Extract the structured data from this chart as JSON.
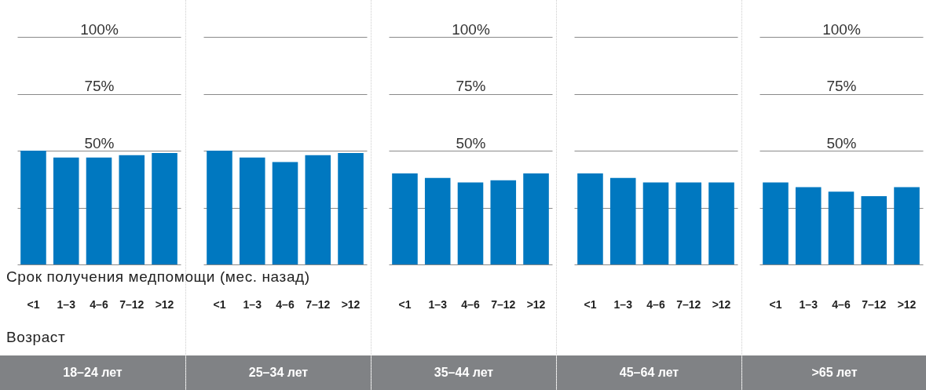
{
  "chart_data": [
    {
      "type": "bar",
      "title": "18–24 лет",
      "categories": [
        "<1",
        "1–3",
        "4–6",
        "7–12",
        ">12"
      ],
      "values": [
        50,
        47,
        47,
        48,
        49
      ],
      "color": "#0078c0",
      "ylim": [
        0,
        100
      ],
      "yticks": [
        {
          "value": 0,
          "label": null
        },
        {
          "value": 25,
          "label": null
        },
        {
          "value": 50,
          "label": "50%"
        },
        {
          "value": 75,
          "label": "75%"
        },
        {
          "value": 100,
          "label": "100%"
        }
      ],
      "grid": "y",
      "annotations": [
        "Срок получения медпомощи (мес. назад)",
        "Возраст"
      ]
    },
    {
      "type": "bar",
      "title": "25–34 лет",
      "categories": [
        "<1",
        "1–3",
        "4–6",
        "7–12",
        ">12"
      ],
      "values": [
        50,
        47,
        45,
        48,
        49
      ],
      "color": "#0078c0",
      "ylim": [
        0,
        100
      ],
      "yticks": [
        {
          "value": 0,
          "label": null
        },
        {
          "value": 25,
          "label": null
        },
        {
          "value": 50,
          "label": null
        },
        {
          "value": 75,
          "label": null
        },
        {
          "value": 100,
          "label": null
        }
      ],
      "grid": "y",
      "tick_labels": "x"
    },
    {
      "type": "bar",
      "title": "35–44 лет",
      "categories": [
        "<1",
        "1–3",
        "4–6",
        "7–12",
        ">12"
      ],
      "values": [
        40,
        38,
        36,
        37,
        40
      ],
      "color": "#0078c0",
      "ylim": [
        0,
        100
      ],
      "yticks": [
        {
          "value": 0,
          "label": null
        },
        {
          "value": 25,
          "label": null
        },
        {
          "value": 50,
          "label": "50%"
        },
        {
          "value": 75,
          "label": "75%"
        },
        {
          "value": 100,
          "label": "100%"
        }
      ],
      "grid": "y"
    },
    {
      "type": "bar",
      "title": "45–64 лет",
      "categories": [
        "<1",
        "1–3",
        "4–6",
        "7–12",
        ">12"
      ],
      "values": [
        40,
        38,
        36,
        36,
        36
      ],
      "color": "#0078c0",
      "ylim": [
        0,
        100
      ],
      "yticks": [
        {
          "value": 0,
          "label": null
        },
        {
          "value": 25,
          "label": null
        },
        {
          "value": 50,
          "label": null
        },
        {
          "value": 75,
          "label": null
        },
        {
          "value": 100,
          "label": null
        }
      ],
      "grid": "y",
      "tick_labels": "x"
    },
    {
      "type": "bar",
      "title": ">65 лет",
      "categories": [
        "<1",
        "1–3",
        "4–6",
        "7–12",
        ">12"
      ],
      "values": [
        36,
        34,
        32,
        30,
        34
      ],
      "color": "#0078c0",
      "ylim": [
        0,
        100
      ],
      "yticks": [
        {
          "value": 0,
          "label": null
        },
        {
          "value": 25,
          "label": null
        },
        {
          "value": 50,
          "label": "50%"
        },
        {
          "value": 75,
          "label": "75%"
        },
        {
          "value": 100,
          "label": "100%"
        }
      ],
      "grid": "y"
    }
  ]
}
